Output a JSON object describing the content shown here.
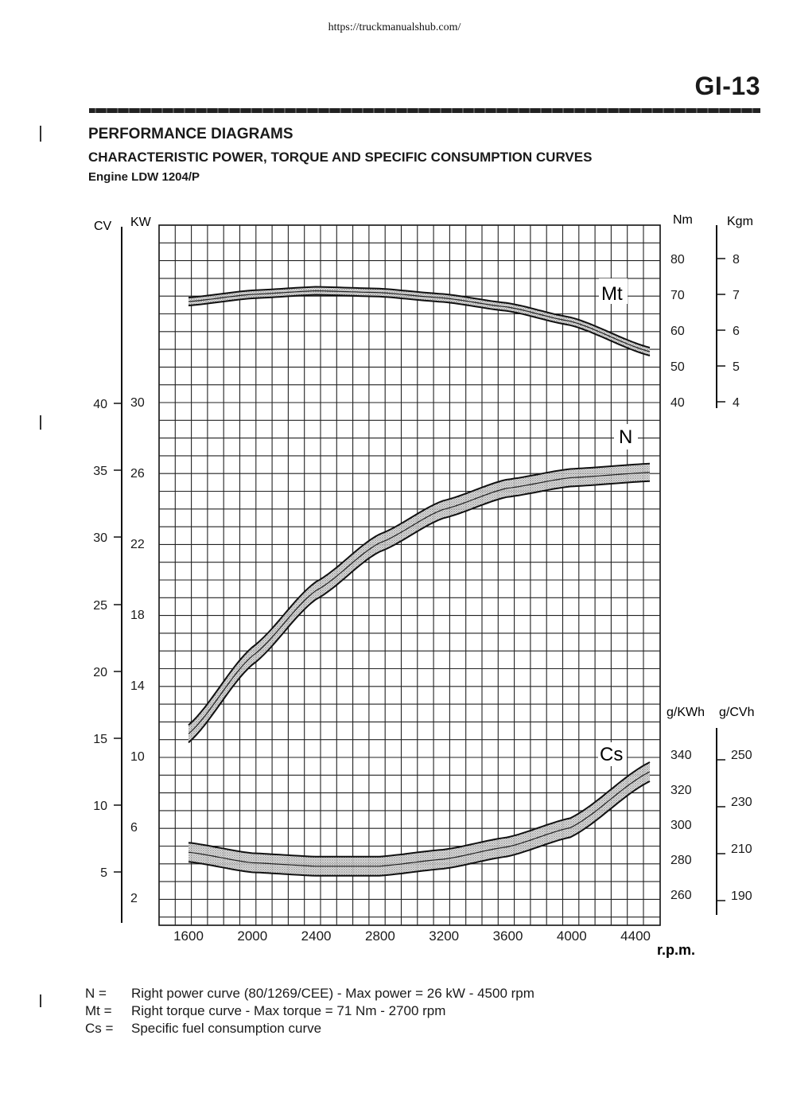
{
  "header": {
    "url": "https://truckmanualshub.com/",
    "page_number": "GI-13",
    "title": "PERFORMANCE DIAGRAMS",
    "subtitle": "CHARACTERISTIC POWER, TORQUE AND SPECIFIC CONSUMPTION CURVES",
    "engine": "Engine LDW 1204/P"
  },
  "legend": [
    {
      "key": "N =",
      "text": "Right power curve (80/1269/CEE) - Max power = 26 kW - 4500 rpm"
    },
    {
      "key": "Mt =",
      "text": "Right torque curve - Max torque = 71 Nm - 2700 rpm"
    },
    {
      "key": "Cs =",
      "text": "Specific fuel consumption curve"
    }
  ],
  "chart_data": {
    "type": "line",
    "x": [
      1600,
      2000,
      2400,
      2800,
      3200,
      3600,
      4000,
      4500
    ],
    "xlabel": "r.p.m.",
    "xticks": [
      "1600",
      "2000",
      "2400",
      "2800",
      "3200",
      "3600",
      "4000",
      "4400"
    ],
    "axis_labels": {
      "cv": "CV",
      "kw": "KW",
      "nm": "Nm",
      "kgm": "Kgm",
      "gkwh": "g/KWh",
      "gcvh": "g/CVh"
    },
    "left_ticks": {
      "cv": [
        "40",
        "35",
        "30",
        "25",
        "20",
        "15",
        "10",
        "5"
      ],
      "kw": [
        "30",
        "26",
        "22",
        "18",
        "14",
        "10",
        "6",
        "2"
      ]
    },
    "right_ticks": {
      "nm": [
        "80",
        "70",
        "60",
        "50",
        "40"
      ],
      "kgm": [
        "8",
        "7",
        "6",
        "5",
        "4"
      ],
      "gkwh": [
        "340",
        "320",
        "300",
        "280",
        "260"
      ],
      "gcvh": [
        "250",
        "230",
        "210",
        "190"
      ]
    },
    "series": [
      {
        "name": "Mt",
        "unit": "Nm",
        "values": [
          68,
          70,
          71,
          70.5,
          69,
          66.5,
          62.5,
          54
        ]
      },
      {
        "name": "N",
        "unit": "kW",
        "values": [
          11.2,
          15.6,
          19.3,
          22.0,
          23.9,
          25.1,
          25.7,
          26
        ]
      },
      {
        "name": "Cs",
        "unit": "g/kWh",
        "values": [
          284,
          278,
          276,
          276,
          280,
          287,
          298,
          330
        ]
      }
    ]
  }
}
